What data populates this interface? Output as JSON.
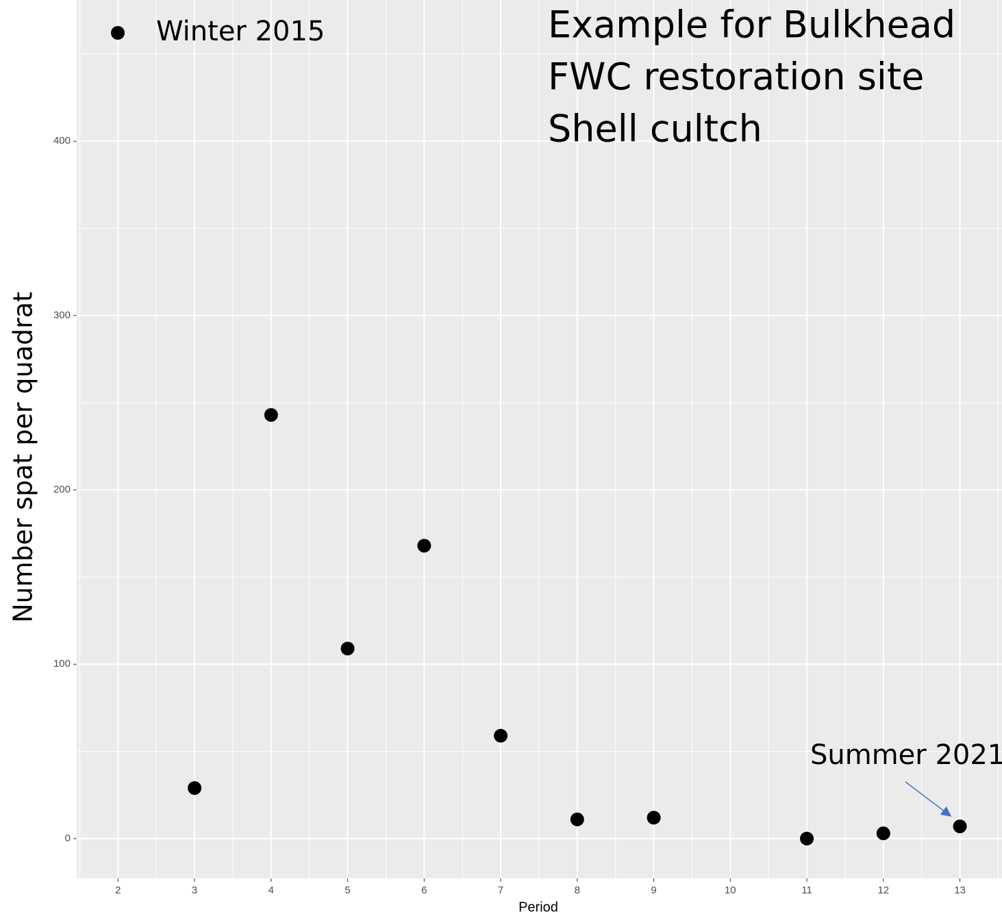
{
  "chart_data": {
    "type": "scatter",
    "title_lines": [
      "Example for Bulkhead",
      "FWC restoration site",
      "Shell cultch"
    ],
    "annotation": "Summer 2021",
    "x_label": "Period",
    "y_label": "Number spat per quadrat",
    "series": [
      {
        "name": "Winter 2015",
        "color": "#000000",
        "x": [
          3,
          4,
          5,
          6,
          7,
          8,
          9,
          11,
          12,
          13
        ],
        "values": [
          29,
          243,
          109,
          168,
          59,
          11,
          12,
          0,
          3,
          7
        ]
      }
    ],
    "xlim": [
      1.46,
      13.55
    ],
    "ylim": [
      -22.8,
      481
    ],
    "xticks": [
      2,
      3,
      4,
      5,
      6,
      7,
      8,
      9,
      10,
      11,
      12,
      13
    ],
    "yticks": [
      0,
      100,
      200,
      300,
      400
    ],
    "grid": true,
    "legend": "top-left"
  }
}
